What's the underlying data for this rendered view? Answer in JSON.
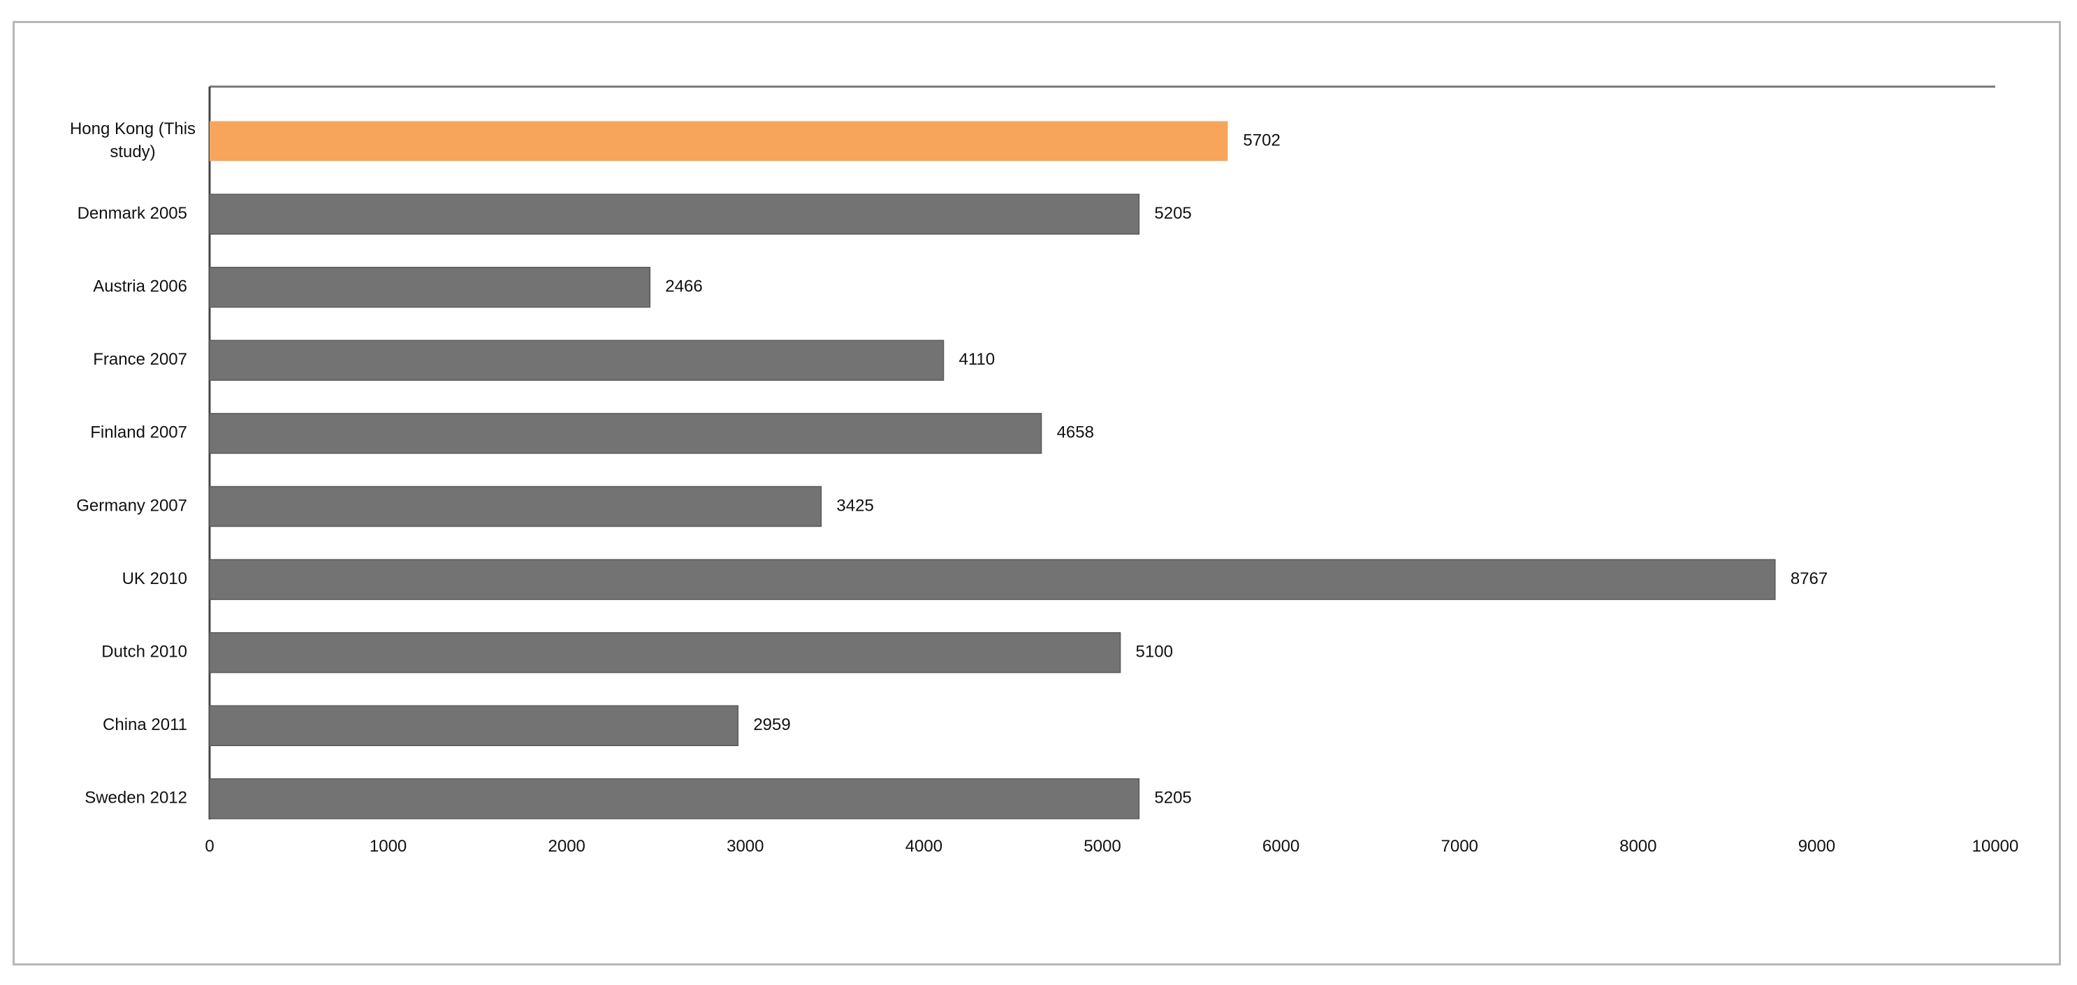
{
  "chart_data": {
    "type": "bar",
    "orientation": "horizontal",
    "categories": [
      "Hong Kong (This study)",
      "Denmark 2005",
      "Austria 2006",
      "France 2007",
      "Finland 2007",
      "Germany 2007",
      "UK 2010",
      "Dutch 2010",
      "China 2011",
      "Sweden 2012"
    ],
    "values": [
      5702,
      5205,
      2466,
      4110,
      4658,
      3425,
      8767,
      5100,
      2959,
      5205
    ],
    "colors": [
      "#f6a55b",
      "#737373",
      "#737373",
      "#737373",
      "#737373",
      "#737373",
      "#737373",
      "#737373",
      "#737373",
      "#737373"
    ],
    "highlight_color": "#f6a55b",
    "bar_color": "#737373",
    "title": "",
    "xlabel": "",
    "ylabel": "",
    "xlim": [
      0,
      10000
    ],
    "xticks": [
      0,
      1000,
      2000,
      3000,
      4000,
      5000,
      6000,
      7000,
      8000,
      9000,
      10000
    ],
    "grid": false,
    "legend": "none",
    "data_labels": true
  }
}
